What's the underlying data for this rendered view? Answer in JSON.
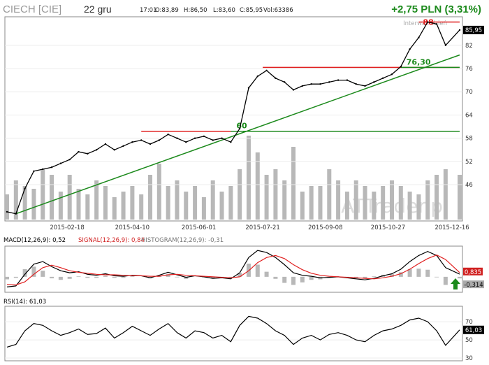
{
  "header": {
    "title": "CIECH [CIE]",
    "interval": "22 gru",
    "time": "17:01",
    "open": "O:83,89",
    "high": "H:86,50",
    "low": "L:83,60",
    "close": "C:85,95",
    "volume": "Vol:63386",
    "change": "+2,75 PLN (3,31%)",
    "interval_note": "Interwał: dzień",
    "watermark": "ATTrader.pl"
  },
  "colors": {
    "price": "#000000",
    "volume": "#b8b8b8",
    "trendline": "#1c8a1c",
    "resistance": "#e02020",
    "support": "#1c8a1c",
    "macd_line": "#000000",
    "signal_line": "#e02020",
    "change_text": "#1c8a1c"
  },
  "chart_data": [
    {
      "type": "line",
      "title": "",
      "x": [
        "2015-01-02",
        "2015-01-09",
        "2015-01-16",
        "2015-01-23",
        "2015-01-30",
        "2015-02-06",
        "2015-02-13",
        "2015-02-20",
        "2015-02-27",
        "2015-03-06",
        "2015-03-13",
        "2015-03-20",
        "2015-03-27",
        "2015-04-03",
        "2015-04-10",
        "2015-04-17",
        "2015-04-24",
        "2015-05-01",
        "2015-05-08",
        "2015-05-15",
        "2015-05-22",
        "2015-05-29",
        "2015-06-05",
        "2015-06-12",
        "2015-06-19",
        "2015-06-26",
        "2015-07-03",
        "2015-07-10",
        "2015-07-17",
        "2015-07-24",
        "2015-07-31",
        "2015-08-07",
        "2015-08-14",
        "2015-08-21",
        "2015-08-28",
        "2015-09-04",
        "2015-09-11",
        "2015-09-18",
        "2015-09-25",
        "2015-10-02",
        "2015-10-09",
        "2015-10-16",
        "2015-10-23",
        "2015-10-30",
        "2015-11-06",
        "2015-11-13",
        "2015-11-20",
        "2015-11-27",
        "2015-12-04",
        "2015-12-11",
        "2015-12-22"
      ],
      "series": [
        {
          "values": [
            39.0,
            38.5,
            45.0,
            49.5,
            50.0,
            50.5,
            51.5,
            52.5,
            54.5,
            54.0,
            55.0,
            56.5,
            55.0,
            56.0,
            57.0,
            57.5,
            56.5,
            57.5,
            59.0,
            58.0,
            57.0,
            58.0,
            58.5,
            57.5,
            58.0,
            57.0,
            60.5,
            71.0,
            74.0,
            75.5,
            73.5,
            72.5,
            70.5,
            71.5,
            72.0,
            72.0,
            72.5,
            73.0,
            73.0,
            72.0,
            71.5,
            72.5,
            73.5,
            74.5,
            76.5,
            81.0,
            84.0,
            88.0,
            87.5,
            82.0,
            85.95
          ]
        }
      ],
      "volume": [
        9,
        14,
        12,
        11,
        18,
        16,
        10,
        16,
        11,
        9,
        14,
        12,
        8,
        10,
        12,
        9,
        16,
        20,
        12,
        14,
        10,
        12,
        8,
        14,
        10,
        12,
        18,
        30,
        24,
        16,
        18,
        14,
        26,
        10,
        12,
        12,
        18,
        14,
        10,
        14,
        12,
        10,
        12,
        14,
        12,
        10,
        9,
        14,
        16,
        18,
        16
      ],
      "y_ticks": [
        46,
        52,
        58,
        64,
        70,
        76,
        82
      ],
      "x_tick_labels": [
        "2015-02-18",
        "2015-04-10",
        "2015-06-01",
        "2015-07-21",
        "2015-09-08",
        "2015-10-27",
        "2015-12-16"
      ],
      "ylim": [
        37,
        89
      ],
      "last_price_label": "85,95",
      "annotations": {
        "resistance": [
          {
            "label": "88",
            "value": 88.0,
            "from": "2015-11-20",
            "to": "2015-12-22"
          },
          {
            "label": "",
            "value": 76.3,
            "from": "2015-07-21",
            "to": "2015-12-22"
          },
          {
            "label": "",
            "value": 59.8,
            "from": "2015-04-17",
            "to": "2015-07-17"
          }
        ],
        "support": [
          {
            "label": "76,30",
            "value": 76.3,
            "from": "2015-11-06",
            "to": "2015-12-22"
          },
          {
            "label": "60",
            "value": 59.8,
            "from": "2015-06-26",
            "to": "2015-12-22"
          }
        ],
        "trendline": {
          "from": [
            "2015-01-09",
            38.5
          ],
          "to": [
            "2015-12-22",
            79.5
          ]
        }
      }
    },
    {
      "type": "line",
      "title": "MACD(12,26,9): 0,52",
      "signal_label": "SIGNAL(12,26,9): 0,84",
      "histogram_label": "HISTOGRAM(12,26,9): -0,31",
      "x": [
        "2015-01-02",
        "2015-01-09",
        "2015-01-16",
        "2015-01-23",
        "2015-01-30",
        "2015-02-06",
        "2015-02-13",
        "2015-02-20",
        "2015-02-27",
        "2015-03-06",
        "2015-03-13",
        "2015-03-20",
        "2015-03-27",
        "2015-04-03",
        "2015-04-10",
        "2015-04-17",
        "2015-04-24",
        "2015-05-01",
        "2015-05-08",
        "2015-05-15",
        "2015-05-22",
        "2015-05-29",
        "2015-06-05",
        "2015-06-12",
        "2015-06-19",
        "2015-06-26",
        "2015-07-03",
        "2015-07-10",
        "2015-07-17",
        "2015-07-24",
        "2015-07-31",
        "2015-08-07",
        "2015-08-14",
        "2015-08-21",
        "2015-08-28",
        "2015-09-04",
        "2015-09-11",
        "2015-09-18",
        "2015-09-25",
        "2015-10-02",
        "2015-10-09",
        "2015-10-16",
        "2015-10-23",
        "2015-10-30",
        "2015-11-06",
        "2015-11-13",
        "2015-11-20",
        "2015-11-27",
        "2015-12-04",
        "2015-12-11",
        "2015-12-22"
      ],
      "series": [
        {
          "name": "MACD",
          "values": [
            -2.0,
            -1.8,
            0.5,
            2.5,
            3.0,
            2.0,
            1.2,
            0.8,
            1.0,
            0.5,
            0.3,
            0.6,
            0.2,
            0.1,
            0.3,
            0.2,
            -0.2,
            0.3,
            0.9,
            0.4,
            -0.1,
            0.2,
            0.0,
            -0.3,
            -0.2,
            -0.4,
            0.8,
            3.8,
            5.2,
            4.8,
            3.8,
            2.4,
            0.8,
            0.3,
            0.1,
            -0.2,
            -0.1,
            0.0,
            -0.2,
            -0.4,
            -0.6,
            -0.3,
            0.2,
            0.6,
            1.5,
            3.0,
            4.2,
            5.0,
            4.2,
            1.8,
            0.52
          ]
        },
        {
          "name": "SIGNAL",
          "values": [
            -1.5,
            -1.6,
            -1.0,
            0.5,
            1.8,
            2.3,
            1.8,
            1.2,
            0.9,
            0.7,
            0.5,
            0.4,
            0.4,
            0.3,
            0.2,
            0.2,
            0.1,
            0.1,
            0.4,
            0.5,
            0.3,
            0.2,
            0.1,
            0.0,
            -0.1,
            -0.2,
            0.0,
            1.2,
            2.8,
            3.8,
            4.2,
            3.6,
            2.4,
            1.4,
            0.7,
            0.3,
            0.1,
            0.0,
            -0.1,
            -0.2,
            -0.3,
            -0.4,
            -0.2,
            0.1,
            0.6,
            1.5,
            2.6,
            3.6,
            4.3,
            3.4,
            0.84
          ]
        },
        {
          "name": "HISTOGRAM",
          "values": [
            -0.5,
            -0.2,
            1.5,
            2.0,
            1.2,
            -0.3,
            -0.6,
            -0.4,
            0.1,
            -0.2,
            -0.2,
            0.2,
            -0.2,
            -0.2,
            0.1,
            0.0,
            -0.3,
            0.2,
            0.5,
            -0.1,
            -0.4,
            0.0,
            -0.1,
            -0.3,
            -0.1,
            -0.2,
            0.8,
            2.6,
            2.4,
            1.0,
            -0.4,
            -1.2,
            -1.6,
            -1.1,
            -0.6,
            -0.5,
            -0.2,
            0.0,
            -0.1,
            -0.2,
            -0.3,
            0.1,
            0.4,
            0.5,
            0.9,
            1.5,
            1.6,
            1.4,
            -0.1,
            -1.6,
            -0.31
          ]
        }
      ],
      "ylim": [
        -2.5,
        5.5
      ],
      "last_labels": [
        "0,835",
        "-0,314"
      ]
    },
    {
      "type": "line",
      "title": "RSI(14): 61,03",
      "x": [
        "2015-01-02",
        "2015-01-09",
        "2015-01-16",
        "2015-01-23",
        "2015-01-30",
        "2015-02-06",
        "2015-02-13",
        "2015-02-20",
        "2015-02-27",
        "2015-03-06",
        "2015-03-13",
        "2015-03-20",
        "2015-03-27",
        "2015-04-03",
        "2015-04-10",
        "2015-04-17",
        "2015-04-24",
        "2015-05-01",
        "2015-05-08",
        "2015-05-15",
        "2015-05-22",
        "2015-05-29",
        "2015-06-05",
        "2015-06-12",
        "2015-06-19",
        "2015-06-26",
        "2015-07-03",
        "2015-07-10",
        "2015-07-17",
        "2015-07-24",
        "2015-07-31",
        "2015-08-07",
        "2015-08-14",
        "2015-08-21",
        "2015-08-28",
        "2015-09-04",
        "2015-09-11",
        "2015-09-18",
        "2015-09-25",
        "2015-10-02",
        "2015-10-09",
        "2015-10-16",
        "2015-10-23",
        "2015-10-30",
        "2015-11-06",
        "2015-11-13",
        "2015-11-20",
        "2015-11-27",
        "2015-12-04",
        "2015-12-11",
        "2015-12-22"
      ],
      "series": [
        {
          "name": "RSI",
          "values": [
            42,
            45,
            60,
            68,
            66,
            60,
            55,
            58,
            62,
            56,
            57,
            63,
            52,
            58,
            65,
            60,
            55,
            62,
            68,
            58,
            52,
            60,
            58,
            52,
            55,
            48,
            66,
            76,
            74,
            68,
            60,
            55,
            45,
            52,
            55,
            50,
            56,
            58,
            55,
            50,
            48,
            55,
            60,
            62,
            66,
            72,
            74,
            70,
            60,
            44,
            61.03
          ]
        }
      ],
      "y_ticks": [
        30,
        50,
        70
      ],
      "ylim": [
        30,
        84
      ],
      "last_label": "61,03"
    }
  ]
}
